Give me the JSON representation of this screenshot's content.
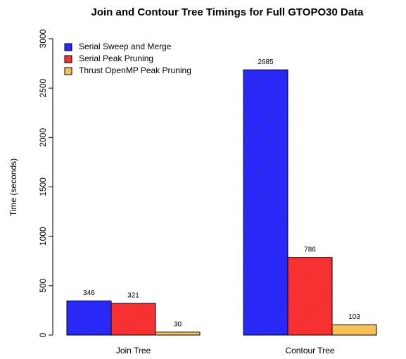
{
  "chart_data": {
    "type": "bar",
    "title": "Join and Contour Tree Timings for Full GTOPO30 Data",
    "y_label": "Time (seconds)",
    "categories": [
      "Join Tree",
      "Contour Tree"
    ],
    "series": [
      {
        "name": "Serial Sweep and Merge",
        "color": "#2a2aff",
        "values": [
          346,
          2685
        ]
      },
      {
        "name": "Serial Peak Pruning",
        "color": "#ff3333",
        "values": [
          321,
          786
        ]
      },
      {
        "name": "Thrust OpenMP Peak Pruning",
        "color": "#ffc85a",
        "values": [
          30,
          103
        ]
      }
    ],
    "ylim": [
      0,
      3000
    ],
    "yticks": [
      0,
      500,
      1000,
      1500,
      2000,
      2500,
      3000
    ],
    "legend": "top-left"
  }
}
